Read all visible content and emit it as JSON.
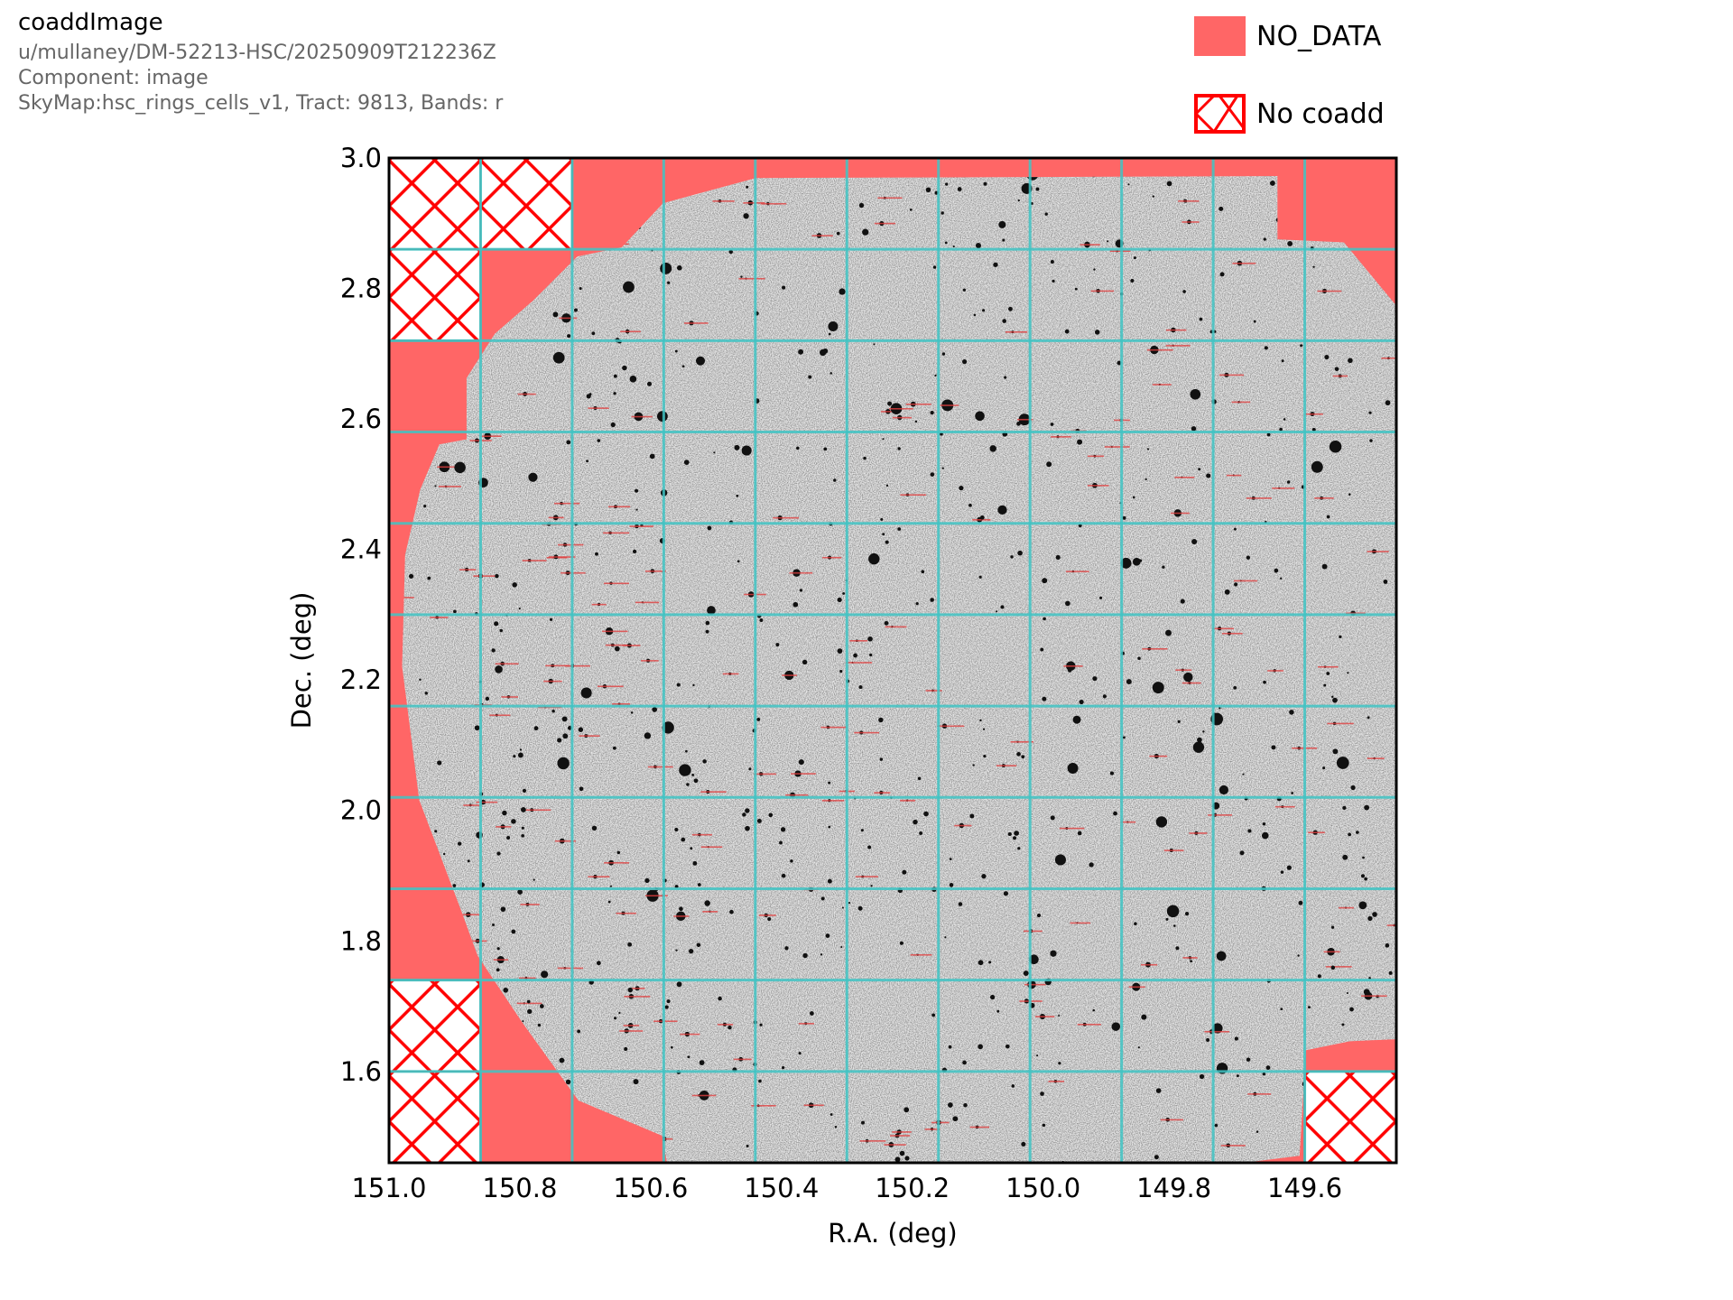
{
  "header": {
    "title": "coaddImage",
    "lines": [
      "u/mullaney/DM-52213-HSC/20250909T212236Z",
      "Component: image",
      "SkyMap:hsc_rings_cells_v1, Tract: 9813, Bands: r"
    ]
  },
  "legend": [
    {
      "label": "NO_DATA",
      "style": "filled",
      "color": "#ff6666"
    },
    {
      "label": "No coadd",
      "style": "hatched",
      "color": "#ff0000"
    }
  ],
  "chart_data": {
    "type": "image",
    "xlabel": "R.A. (deg)",
    "ylabel": "Dec. (deg)",
    "xlim": [
      151.0,
      149.46
    ],
    "ylim": [
      1.46,
      3.0
    ],
    "x_inverted": true,
    "xticks": [
      "151.0",
      "150.8",
      "150.6",
      "150.4",
      "150.2",
      "150.0",
      "149.8",
      "149.6"
    ],
    "xtick_values": [
      151.0,
      150.8,
      150.6,
      150.4,
      150.2,
      150.0,
      149.8,
      149.6
    ],
    "yticks": [
      "1.6",
      "1.8",
      "2.0",
      "2.2",
      "2.4",
      "2.6",
      "2.8",
      "3.0"
    ],
    "ytick_values": [
      1.6,
      1.8,
      2.0,
      2.2,
      2.4,
      2.6,
      2.8,
      3.0
    ],
    "patch_grid": {
      "columns": 11,
      "rows": 11,
      "line_color": "#40c4c4"
    },
    "no_coadd_patches": [
      [
        0,
        0
      ],
      [
        1,
        0
      ],
      [
        0,
        1
      ],
      [
        0,
        9
      ],
      [
        0,
        10
      ],
      [
        10,
        10
      ]
    ],
    "colors": {
      "no_data": "#ff6666",
      "no_coadd_hatch": "#ff0000",
      "image": "grayscale"
    }
  }
}
